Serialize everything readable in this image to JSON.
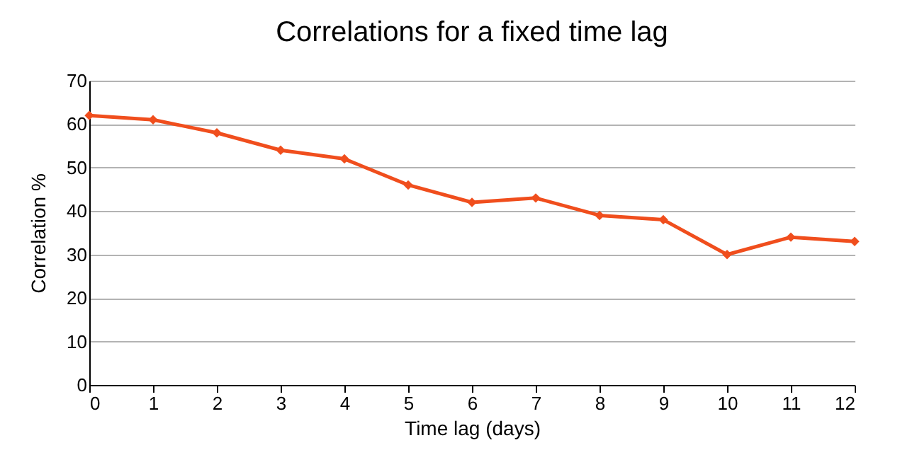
{
  "chart_data": {
    "type": "line",
    "title": "Correlations for a fixed time lag",
    "xlabel": "Time lag (days)",
    "ylabel": "Correlation %",
    "x": [
      0,
      1,
      2,
      3,
      4,
      5,
      6,
      7,
      8,
      9,
      10,
      11,
      12
    ],
    "series": [
      {
        "color": "#f04e1d",
        "values": [
          62,
          61,
          58,
          54,
          52,
          46,
          42,
          43,
          39,
          38,
          30,
          34,
          33
        ]
      }
    ],
    "xlim": [
      0,
      12
    ],
    "xticks": [
      0,
      1,
      2,
      3,
      4,
      5,
      6,
      7,
      8,
      9,
      10,
      11,
      12
    ],
    "ylim": [
      0,
      70
    ],
    "yticks": [
      0,
      10,
      20,
      30,
      40,
      50,
      60,
      70
    ],
    "grid": "y",
    "marker": "diamond",
    "line_style": "solid"
  }
}
